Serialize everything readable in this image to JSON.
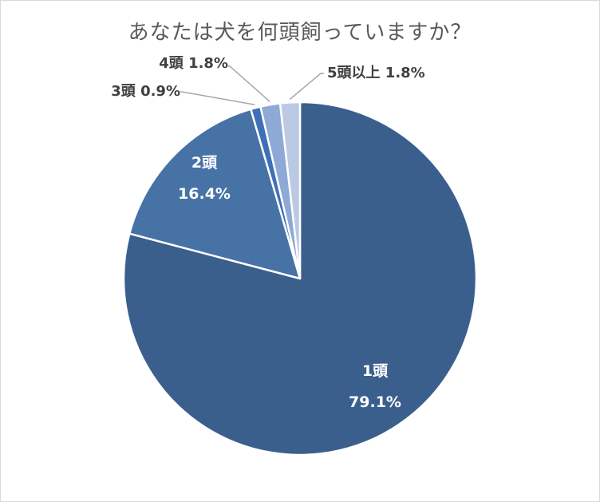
{
  "chart_data": {
    "type": "pie",
    "title": "あなたは犬を何頭飼っていますか？",
    "slices": [
      {
        "name": "1頭",
        "value": 79.1,
        "label": "79.1%",
        "color": "#3b5f8d"
      },
      {
        "name": "2頭",
        "value": 16.4,
        "label": "16.4%",
        "color": "#4672a6"
      },
      {
        "name": "3頭",
        "value": 0.9,
        "label": "0.9%",
        "color": "#3f6fb7"
      },
      {
        "name": "4頭",
        "value": 1.8,
        "label": "1.8%",
        "color": "#8ea9d6"
      },
      {
        "name": "5頭以上",
        "value": 1.8,
        "label": "1.8%",
        "color": "#bcc9e4"
      }
    ],
    "legend": "none",
    "start_angle": "12 o'clock",
    "direction": "clockwise"
  }
}
